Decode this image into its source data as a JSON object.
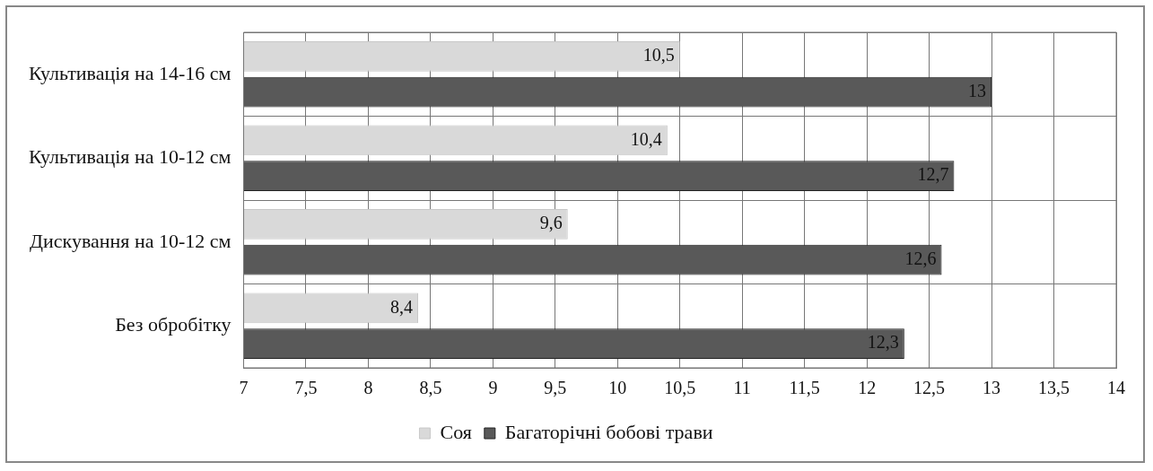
{
  "chart_data": {
    "type": "bar",
    "orientation": "horizontal",
    "categories": [
      "Культивація на 14-16 см",
      "Культивація на 10-12 см",
      "Дискування на 10-12 см",
      "Без обробітку"
    ],
    "series": [
      {
        "name": "Соя",
        "color": "#d9d9d9",
        "values": [
          10.5,
          10.4,
          9.6,
          8.4
        ],
        "value_labels": [
          "10,5",
          "10,4",
          "9,6",
          "8,4"
        ]
      },
      {
        "name": "Багаторічні бобові трави",
        "color": "#595959",
        "values": [
          13,
          12.7,
          12.6,
          12.3
        ],
        "value_labels": [
          "13",
          "12,7",
          "12,6",
          "12,3"
        ]
      }
    ],
    "xlim": [
      7,
      14
    ],
    "xticks": [
      7,
      {
        "value": 7.5,
        "label": "7,5"
      },
      8,
      {
        "value": 8.5,
        "label": "8,5"
      },
      9,
      {
        "value": 9.5,
        "label": "9,5"
      },
      10,
      {
        "value": 10.5,
        "label": "10,5"
      },
      11,
      {
        "value": 11.5,
        "label": "11,5"
      },
      12,
      {
        "value": 12.5,
        "label": "12,5"
      },
      13,
      {
        "value": 13.5,
        "label": "13,5"
      },
      14
    ],
    "grid": true,
    "legend": "bottom"
  }
}
